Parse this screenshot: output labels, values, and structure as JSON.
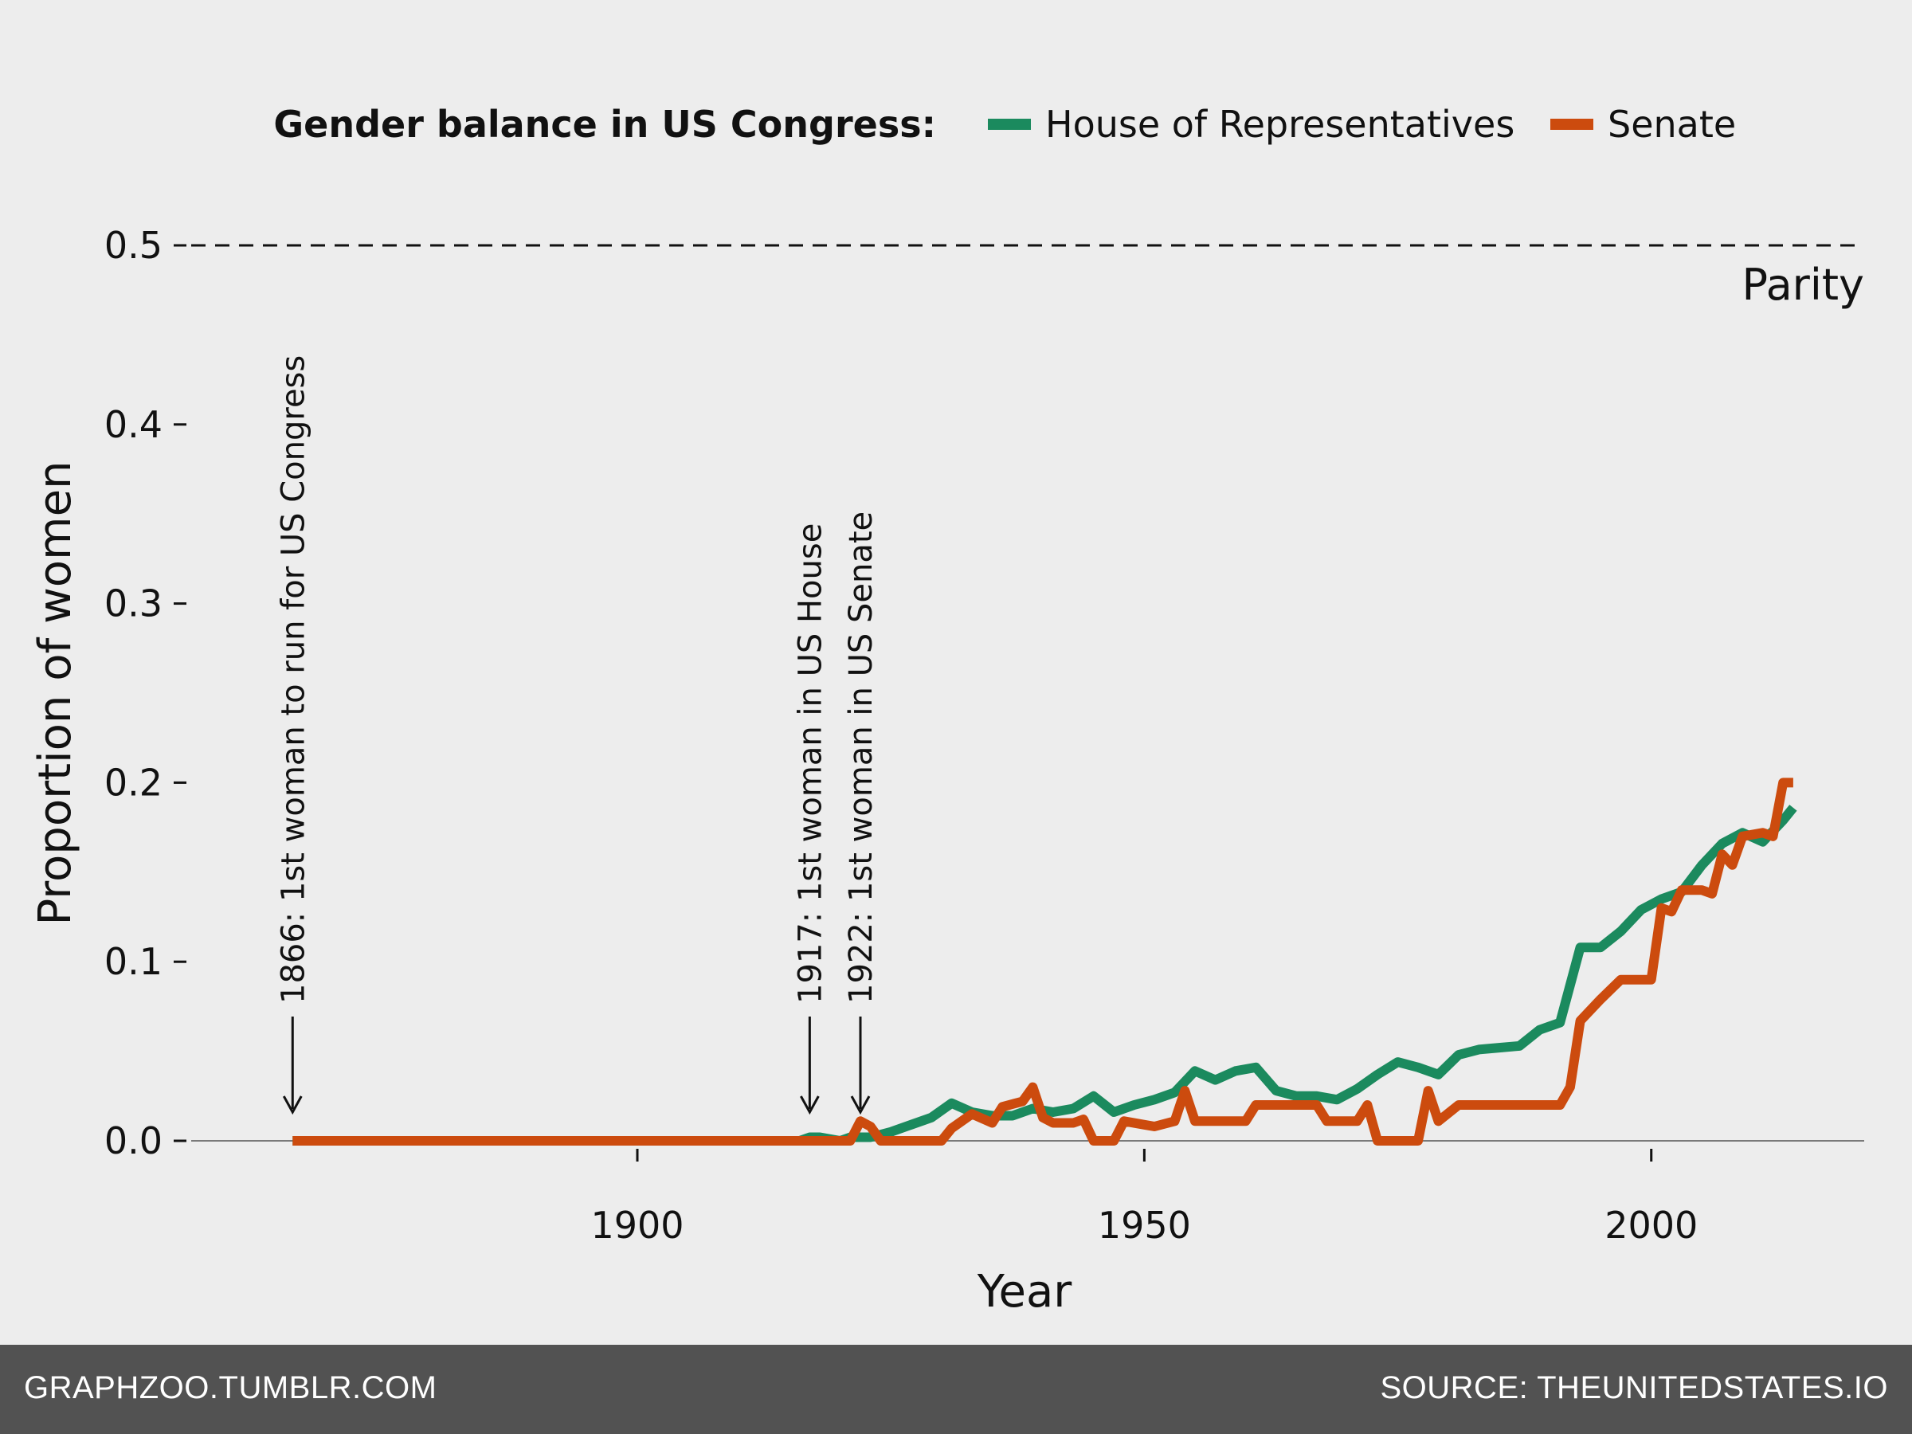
{
  "chart_data": {
    "type": "line",
    "legend": {
      "title": "Gender balance in US Congress:",
      "placement": "top",
      "entries": [
        {
          "label": "House of Representatives",
          "color": "#1b8a5e"
        },
        {
          "label": "Senate",
          "color": "#cc4b0e"
        }
      ]
    },
    "xlabel": "Year",
    "ylabel": "Proportion of women",
    "xlim": [
      1856,
      2021
    ],
    "ylim": [
      0,
      0.5
    ],
    "xticks": [
      1900,
      1950,
      2000
    ],
    "yticks": [
      0.0,
      0.1,
      0.2,
      0.3,
      0.4,
      0.5
    ],
    "ytick_labels": [
      "0.0",
      "0.1",
      "0.2",
      "0.3",
      "0.4",
      "0.5"
    ],
    "grid": false,
    "reference_line": {
      "y": 0.5,
      "label": "Parity",
      "style": "dashed"
    },
    "annotations": [
      {
        "x": 1866,
        "text": "1866: 1st woman to run for US Congress"
      },
      {
        "x": 1917,
        "text": "1917: 1st woman in US House"
      },
      {
        "x": 1922,
        "text": "1922: 1st woman in US Senate"
      }
    ],
    "series": [
      {
        "name": "House of Representatives",
        "color": "#1b8a5e",
        "points": [
          [
            1866,
            0.0
          ],
          [
            1916,
            0.0
          ],
          [
            1917,
            0.002
          ],
          [
            1918,
            0.002
          ],
          [
            1920,
            0.0
          ],
          [
            1921,
            0.002
          ],
          [
            1922,
            0.002
          ],
          [
            1923,
            0.002
          ],
          [
            1925,
            0.005
          ],
          [
            1927,
            0.009
          ],
          [
            1929,
            0.013
          ],
          [
            1931,
            0.021
          ],
          [
            1933,
            0.016
          ],
          [
            1935,
            0.014
          ],
          [
            1937,
            0.014
          ],
          [
            1939,
            0.018
          ],
          [
            1941,
            0.016
          ],
          [
            1943,
            0.018
          ],
          [
            1945,
            0.025
          ],
          [
            1947,
            0.016
          ],
          [
            1949,
            0.02
          ],
          [
            1951,
            0.023
          ],
          [
            1953,
            0.027
          ],
          [
            1955,
            0.039
          ],
          [
            1957,
            0.034
          ],
          [
            1959,
            0.039
          ],
          [
            1961,
            0.041
          ],
          [
            1963,
            0.028
          ],
          [
            1965,
            0.025
          ],
          [
            1967,
            0.025
          ],
          [
            1969,
            0.023
          ],
          [
            1971,
            0.029
          ],
          [
            1973,
            0.037
          ],
          [
            1975,
            0.044
          ],
          [
            1977,
            0.041
          ],
          [
            1979,
            0.037
          ],
          [
            1981,
            0.048
          ],
          [
            1983,
            0.051
          ],
          [
            1985,
            0.052
          ],
          [
            1987,
            0.053
          ],
          [
            1989,
            0.062
          ],
          [
            1991,
            0.066
          ],
          [
            1993,
            0.108
          ],
          [
            1995,
            0.108
          ],
          [
            1997,
            0.117
          ],
          [
            1999,
            0.129
          ],
          [
            2001,
            0.135
          ],
          [
            2003,
            0.139
          ],
          [
            2005,
            0.154
          ],
          [
            2007,
            0.166
          ],
          [
            2009,
            0.172
          ],
          [
            2011,
            0.167
          ],
          [
            2013,
            0.179
          ],
          [
            2014,
            0.186
          ]
        ]
      },
      {
        "name": "Senate",
        "color": "#cc4b0e",
        "points": [
          [
            1866,
            0.0
          ],
          [
            1921,
            0.0
          ],
          [
            1922,
            0.011
          ],
          [
            1923,
            0.008
          ],
          [
            1924,
            0.0
          ],
          [
            1930,
            0.0
          ],
          [
            1931,
            0.007
          ],
          [
            1933,
            0.015
          ],
          [
            1935,
            0.01
          ],
          [
            1936,
            0.019
          ],
          [
            1938,
            0.022
          ],
          [
            1939,
            0.03
          ],
          [
            1940,
            0.013
          ],
          [
            1941,
            0.01
          ],
          [
            1943,
            0.01
          ],
          [
            1944,
            0.012
          ],
          [
            1945,
            0.0
          ],
          [
            1947,
            0.0
          ],
          [
            1948,
            0.011
          ],
          [
            1950,
            0.009
          ],
          [
            1951,
            0.008
          ],
          [
            1953,
            0.011
          ],
          [
            1954,
            0.028
          ],
          [
            1955,
            0.011
          ],
          [
            1957,
            0.011
          ],
          [
            1959,
            0.011
          ],
          [
            1960,
            0.011
          ],
          [
            1961,
            0.02
          ],
          [
            1963,
            0.02
          ],
          [
            1965,
            0.02
          ],
          [
            1967,
            0.02
          ],
          [
            1968,
            0.011
          ],
          [
            1971,
            0.011
          ],
          [
            1972,
            0.02
          ],
          [
            1973,
            0.0
          ],
          [
            1977,
            0.0
          ],
          [
            1978,
            0.028
          ],
          [
            1979,
            0.011
          ],
          [
            1981,
            0.02
          ],
          [
            1983,
            0.02
          ],
          [
            1985,
            0.02
          ],
          [
            1987,
            0.02
          ],
          [
            1989,
            0.02
          ],
          [
            1991,
            0.02
          ],
          [
            1992,
            0.03
          ],
          [
            1993,
            0.067
          ],
          [
            1995,
            0.079
          ],
          [
            1997,
            0.09
          ],
          [
            1999,
            0.09
          ],
          [
            2000,
            0.09
          ],
          [
            2001,
            0.13
          ],
          [
            2002,
            0.128
          ],
          [
            2003,
            0.14
          ],
          [
            2005,
            0.14
          ],
          [
            2006,
            0.138
          ],
          [
            2007,
            0.16
          ],
          [
            2008,
            0.154
          ],
          [
            2009,
            0.17
          ],
          [
            2011,
            0.172
          ],
          [
            2012,
            0.17
          ],
          [
            2013,
            0.2
          ],
          [
            2014,
            0.2
          ]
        ]
      }
    ]
  },
  "footer": {
    "left": "GRAPHZOO.TUMBLR.COM",
    "right": "SOURCE: THEUNITEDSTATES.IO"
  }
}
